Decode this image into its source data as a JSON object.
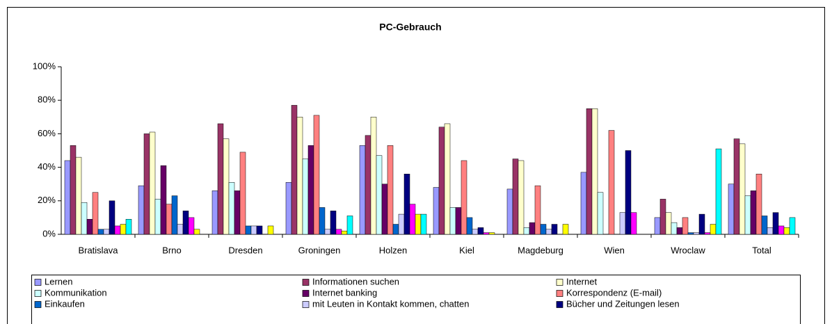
{
  "chart_data": {
    "type": "bar",
    "title": "PC-Gebrauch",
    "categories": [
      "Bratislava",
      "Brno",
      "Dresden",
      "Groningen",
      "Holzen",
      "Kiel",
      "Magdeburg",
      "Wien",
      "Wroclaw",
      "Total"
    ],
    "series": [
      {
        "name": "Lernen",
        "color": "#9999ff",
        "values": [
          44,
          29,
          26,
          31,
          53,
          28,
          27,
          37,
          10,
          30
        ]
      },
      {
        "name": "Informationen suchen",
        "color": "#993366",
        "values": [
          53,
          60,
          66,
          77,
          59,
          64,
          45,
          75,
          21,
          57
        ]
      },
      {
        "name": "Internet",
        "color": "#ffffcc",
        "values": [
          46,
          61,
          57,
          70,
          70,
          66,
          44,
          75,
          13,
          54
        ]
      },
      {
        "name": "Kommunikation",
        "color": "#ccffff",
        "values": [
          19,
          21,
          31,
          45,
          47,
          16,
          4,
          25,
          7,
          23
        ]
      },
      {
        "name": "Internet banking",
        "color": "#660066",
        "values": [
          9,
          41,
          26,
          53,
          30,
          16,
          7,
          0,
          4,
          26
        ]
      },
      {
        "name": "Korrespondenz (E-mail)",
        "color": "#ff8080",
        "values": [
          25,
          18,
          49,
          71,
          53,
          44,
          29,
          62,
          10,
          36
        ]
      },
      {
        "name": "Einkaufen",
        "color": "#0066cc",
        "values": [
          3,
          23,
          5,
          16,
          6,
          10,
          6,
          0,
          1,
          11
        ]
      },
      {
        "name": "mit Leuten in Kontakt kommen, chatten",
        "color": "#ccccff",
        "values": [
          3,
          6,
          5,
          3,
          12,
          3,
          3,
          13,
          1,
          4
        ]
      },
      {
        "name": "Bücher und Zeitungen lesen",
        "color": "#000080",
        "values": [
          20,
          14,
          5,
          14,
          36,
          4,
          6,
          50,
          12,
          13
        ]
      },
      {
        "color": "#ff00ff",
        "values": [
          5,
          10,
          0,
          3,
          18,
          1,
          0,
          13,
          1,
          5
        ]
      },
      {
        "color": "#ffff00",
        "values": [
          6,
          3,
          5,
          2,
          12,
          1,
          6,
          0,
          6,
          4
        ]
      },
      {
        "color": "#00ffff",
        "values": [
          9,
          0,
          0,
          11,
          12,
          0,
          0,
          0,
          51,
          10
        ]
      }
    ],
    "ylim": [
      0,
      100
    ],
    "yticks": [
      {
        "value": 0,
        "label": "0%"
      },
      {
        "value": 20,
        "label": "20%"
      },
      {
        "value": 40,
        "label": "40%"
      },
      {
        "value": 60,
        "label": "60%"
      },
      {
        "value": 80,
        "label": "80%"
      },
      {
        "value": 100,
        "label": "100%"
      }
    ],
    "grid": false
  }
}
